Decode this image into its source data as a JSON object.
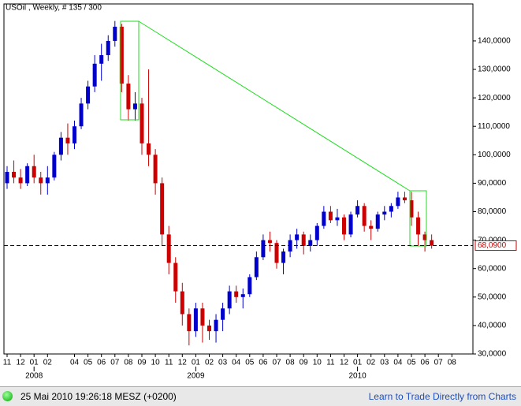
{
  "chart_data": {
    "type": "candlestick",
    "title": "USOil , Weekly, # 135 / 300",
    "up_color": "#0000cc",
    "down_color": "#cc0000",
    "candles": [
      [
        90,
        96,
        88,
        94
      ],
      [
        94,
        98,
        90,
        92
      ],
      [
        92,
        95,
        88,
        90
      ],
      [
        90,
        97,
        89,
        96
      ],
      [
        96,
        100,
        90,
        92
      ],
      [
        92,
        94,
        86,
        90
      ],
      [
        90,
        96,
        86,
        92
      ],
      [
        92,
        101,
        91,
        100
      ],
      [
        100,
        108,
        98,
        106
      ],
      [
        106,
        111,
        100,
        104
      ],
      [
        104,
        112,
        102,
        110
      ],
      [
        110,
        120,
        109,
        118
      ],
      [
        118,
        126,
        116,
        124
      ],
      [
        124,
        135,
        122,
        132
      ],
      [
        132,
        139,
        126,
        135
      ],
      [
        135,
        142,
        133,
        140
      ],
      [
        140,
        147,
        138,
        145
      ],
      [
        145,
        146,
        122,
        125
      ],
      [
        125,
        128,
        112,
        116
      ],
      [
        116,
        122,
        112,
        118
      ],
      [
        118,
        120,
        100,
        104
      ],
      [
        104,
        130,
        96,
        100
      ],
      [
        100,
        102,
        86,
        90
      ],
      [
        90,
        92,
        68,
        72
      ],
      [
        72,
        75,
        58,
        62
      ],
      [
        62,
        64,
        48,
        52
      ],
      [
        52,
        55,
        40,
        44
      ],
      [
        44,
        46,
        33,
        38
      ],
      [
        38,
        48,
        36,
        46
      ],
      [
        46,
        48,
        34,
        40
      ],
      [
        40,
        42,
        35,
        38
      ],
      [
        38,
        44,
        34,
        42
      ],
      [
        42,
        48,
        38,
        46
      ],
      [
        46,
        54,
        44,
        52
      ],
      [
        52,
        54,
        48,
        50
      ],
      [
        50,
        53,
        46,
        51
      ],
      [
        51,
        58,
        50,
        57
      ],
      [
        57,
        66,
        56,
        64
      ],
      [
        64,
        72,
        63,
        70
      ],
      [
        70,
        73,
        66,
        69
      ],
      [
        69,
        70,
        60,
        62
      ],
      [
        62,
        67,
        58,
        66
      ],
      [
        66,
        72,
        64,
        70
      ],
      [
        70,
        74,
        67,
        72
      ],
      [
        72,
        73,
        65,
        68
      ],
      [
        68,
        72,
        66,
        70
      ],
      [
        70,
        76,
        68,
        75
      ],
      [
        75,
        82,
        74,
        80
      ],
      [
        80,
        82,
        76,
        77
      ],
      [
        77,
        81,
        75,
        78
      ],
      [
        78,
        79,
        70,
        72
      ],
      [
        72,
        80,
        71,
        79
      ],
      [
        79,
        84,
        78,
        82
      ],
      [
        82,
        83,
        73,
        75
      ],
      [
        75,
        77,
        70,
        74
      ],
      [
        74,
        80,
        73,
        79
      ],
      [
        79,
        82,
        77,
        80
      ],
      [
        80,
        83,
        78,
        82
      ],
      [
        82,
        87,
        81,
        85
      ],
      [
        85,
        87,
        83,
        84
      ],
      [
        84,
        87,
        75,
        78
      ],
      [
        78,
        80,
        68,
        72
      ],
      [
        72,
        73,
        66,
        70
      ],
      [
        70,
        72,
        67,
        68.09
      ]
    ],
    "xlim": [
      0,
      68
    ],
    "xticks": [
      {
        "value": 0,
        "label": "11"
      },
      {
        "value": 2,
        "label": "12"
      },
      {
        "value": 4,
        "label": "01"
      },
      {
        "value": 6,
        "label": "02"
      },
      {
        "value": 10,
        "label": "04"
      },
      {
        "value": 12,
        "label": "05"
      },
      {
        "value": 14,
        "label": "06"
      },
      {
        "value": 16,
        "label": "07"
      },
      {
        "value": 18,
        "label": "08"
      },
      {
        "value": 20,
        "label": "09"
      },
      {
        "value": 22,
        "label": "10"
      },
      {
        "value": 24,
        "label": "11"
      },
      {
        "value": 26,
        "label": "12"
      },
      {
        "value": 28,
        "label": "01"
      },
      {
        "value": 30,
        "label": "02"
      },
      {
        "value": 32,
        "label": "03"
      },
      {
        "value": 34,
        "label": "04"
      },
      {
        "value": 36,
        "label": "05"
      },
      {
        "value": 38,
        "label": "06"
      },
      {
        "value": 40,
        "label": "07"
      },
      {
        "value": 42,
        "label": "08"
      },
      {
        "value": 44,
        "label": "09"
      },
      {
        "value": 46,
        "label": "10"
      },
      {
        "value": 48,
        "label": "11"
      },
      {
        "value": 50,
        "label": "12"
      },
      {
        "value": 52,
        "label": "01"
      },
      {
        "value": 54,
        "label": "02"
      },
      {
        "value": 56,
        "label": "03"
      },
      {
        "value": 58,
        "label": "04"
      },
      {
        "value": 60,
        "label": "05"
      },
      {
        "value": 62,
        "label": "06"
      },
      {
        "value": 64,
        "label": "07"
      },
      {
        "value": 66,
        "label": "08"
      }
    ],
    "year_labels": [
      {
        "value": 4,
        "label": "2008"
      },
      {
        "value": 28,
        "label": "2009"
      },
      {
        "value": 52,
        "label": "2010"
      }
    ],
    "ylim": [
      30,
      153
    ],
    "yticks": [
      {
        "value": 30,
        "label": "30,0000"
      },
      {
        "value": 40,
        "label": "40,0000"
      },
      {
        "value": 50,
        "label": "50,0000"
      },
      {
        "value": 60,
        "label": "60,0000"
      },
      {
        "value": 70,
        "label": "70,0000"
      },
      {
        "value": 80,
        "label": "80,0000"
      },
      {
        "value": 90,
        "label": "90,0000"
      },
      {
        "value": 100,
        "label": "100,0000"
      },
      {
        "value": 110,
        "label": "110,0000"
      },
      {
        "value": 120,
        "label": "120,0000"
      },
      {
        "value": 130,
        "label": "130,0000"
      },
      {
        "value": 140,
        "label": "140,0000"
      }
    ],
    "current_price": {
      "value": 68.09,
      "label": "68,0900"
    }
  },
  "status_bar": {
    "timestamp": "25 Mai 2010 19:26:18  MESZ (+0200)",
    "link": "Learn to Trade Directly from Charts"
  }
}
